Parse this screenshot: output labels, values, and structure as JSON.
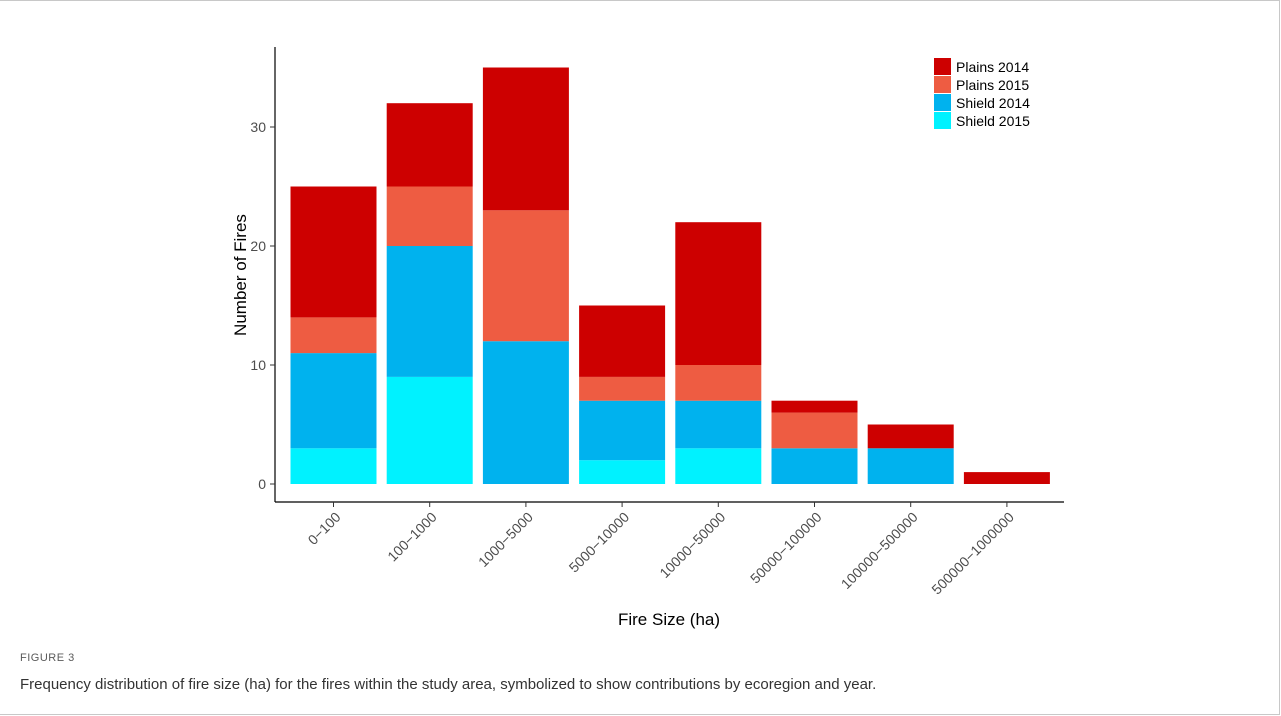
{
  "figure": {
    "label": "FIGURE 3",
    "caption": "Frequency distribution of fire size (ha) for the fires within the study area, symbolized to show contributions by ecoregion and year."
  },
  "chart_data": {
    "type": "bar",
    "stacked": true,
    "xlabel": "Fire Size (ha)",
    "ylabel": "Number of Fires",
    "ylim": [
      0,
      36
    ],
    "yticks": [
      0,
      10,
      20,
      30
    ],
    "grid": false,
    "legend_position": "top-right",
    "categories": [
      "0−100",
      "100−1000",
      "1000−5000",
      "5000−10000",
      "10000−50000",
      "50000−100000",
      "100000−500000",
      "500000−1000000"
    ],
    "series": [
      {
        "name": "Shield 2015",
        "color": "#00F2FF",
        "values": [
          3,
          9,
          0,
          2,
          3,
          0,
          0,
          0
        ]
      },
      {
        "name": "Shield 2014",
        "color": "#00B2EE",
        "values": [
          8,
          11,
          12,
          5,
          4,
          3,
          3,
          0
        ]
      },
      {
        "name": "Plains 2015",
        "color": "#EE5C42",
        "values": [
          3,
          5,
          11,
          2,
          3,
          3,
          0,
          0
        ]
      },
      {
        "name": "Plains 2014",
        "color": "#CD0000",
        "values": [
          11,
          7,
          12,
          6,
          12,
          1,
          2,
          1
        ]
      }
    ],
    "legend_order": [
      "Plains 2014",
      "Plains 2015",
      "Shield 2014",
      "Shield 2015"
    ]
  }
}
